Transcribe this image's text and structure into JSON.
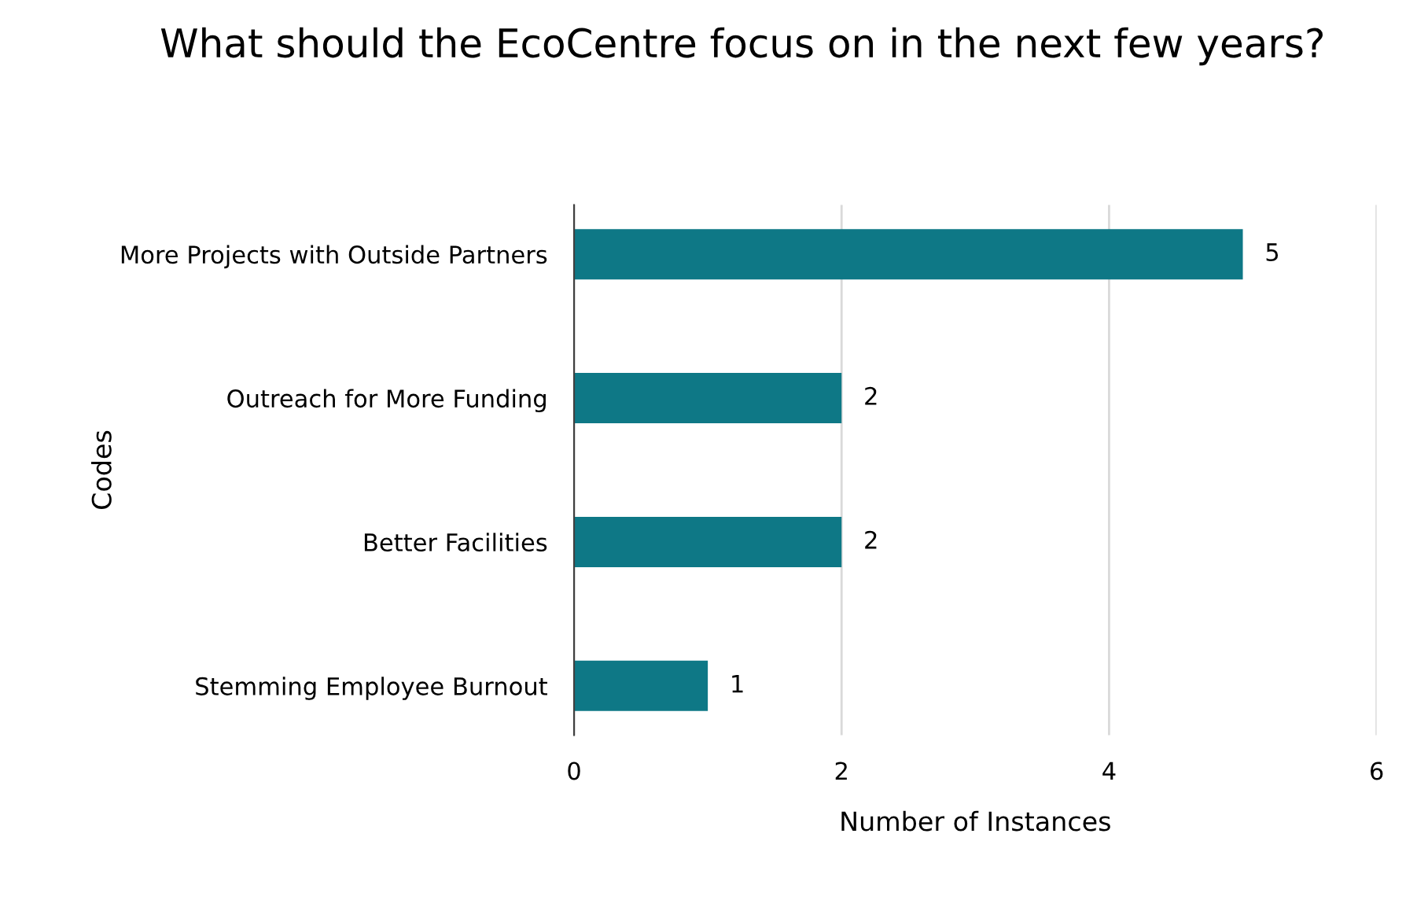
{
  "chart_data": {
    "type": "bar",
    "orientation": "horizontal",
    "title": "What should the EcoCentre focus on in the next few years?",
    "xlabel": "Number of Instances",
    "ylabel": "Codes",
    "categories": [
      "More Projects with Outside Partners",
      "Outreach for More Funding",
      "Better Facilities",
      "Stemming Employee Burnout"
    ],
    "values": [
      5,
      2,
      2,
      1
    ],
    "color": "#0e7886",
    "xlim": [
      0,
      6
    ],
    "xticks": [
      0,
      2,
      4,
      6
    ],
    "grid": "x",
    "data_labels": true
  }
}
